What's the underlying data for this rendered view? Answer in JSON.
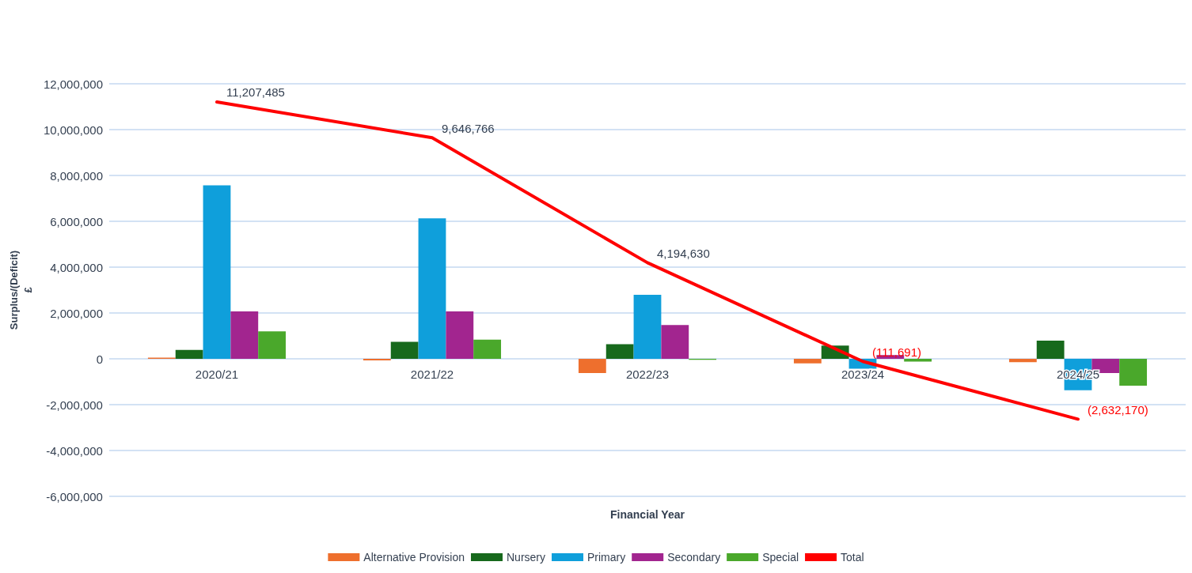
{
  "chart_data": {
    "type": "bar",
    "xlabel": "Financial Year",
    "ylabel": "Surplus/(Deficit)\n£",
    "categories": [
      "2020/21",
      "2021/22",
      "2022/23",
      "2023/24",
      "2024/25"
    ],
    "series": [
      {
        "name": "Alternative Provision",
        "color": "#ee6f2d",
        "values": [
          50000,
          -70000,
          -620000,
          -200000,
          -150000
        ]
      },
      {
        "name": "Nursery",
        "color": "#17691c",
        "values": [
          390000,
          740000,
          640000,
          580000,
          790000
        ]
      },
      {
        "name": "Primary",
        "color": "#0f9fdb",
        "values": [
          7570000,
          6130000,
          2790000,
          -430000,
          -1370000
        ]
      },
      {
        "name": "Secondary",
        "color": "#a2258f",
        "values": [
          2070000,
          2070000,
          1470000,
          160000,
          -620000
        ]
      },
      {
        "name": "Special",
        "color": "#4aa82b",
        "values": [
          1200000,
          840000,
          -40000,
          -120000,
          -1170000
        ]
      },
      {
        "name": "Total",
        "type": "line",
        "color": "#ff0000",
        "values": [
          11207485,
          9646766,
          4194630,
          -111691,
          -2632170
        ],
        "value_labels": [
          "11,207,485",
          "9,646,766",
          "4,194,630",
          "(111,691)",
          "(2,632,170)"
        ]
      }
    ],
    "ylim": [
      -6000000,
      12000000
    ],
    "yticks": [
      {
        "value": -6000000,
        "label": "-6,000,000"
      },
      {
        "value": -4000000,
        "label": "-4,000,000"
      },
      {
        "value": -2000000,
        "label": "-2,000,000"
      },
      0,
      {
        "value": 2000000,
        "label": "2,000,000"
      },
      {
        "value": 4000000,
        "label": "4,000,000"
      },
      {
        "value": 6000000,
        "label": "6,000,000"
      },
      {
        "value": 8000000,
        "label": "8,000,000"
      },
      {
        "value": 10000000,
        "label": "10,000,000"
      },
      {
        "value": 12000000,
        "label": "12,000,000"
      }
    ],
    "grid": "y",
    "legend": "bottom",
    "marker": "none",
    "line_style": "solid"
  }
}
